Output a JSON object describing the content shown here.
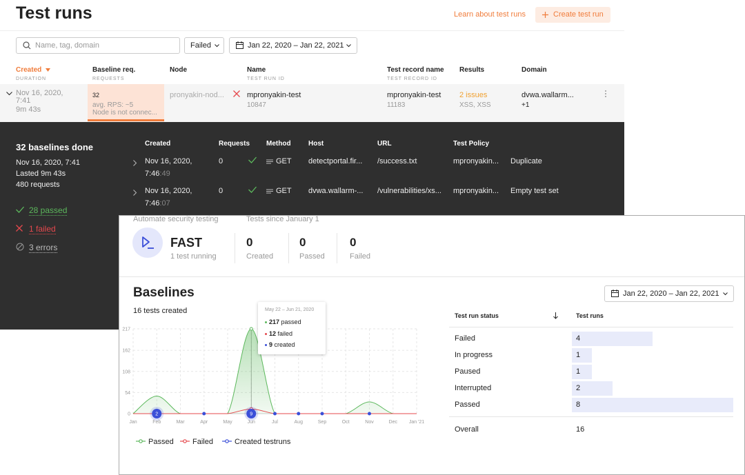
{
  "header": {
    "title": "Test runs",
    "learn_link": "Learn about test runs",
    "create_button": "Create test run"
  },
  "filters": {
    "search_placeholder": "Name, tag, domain",
    "status": "Failed",
    "date_range": "Jan 22, 2020 – Jan 22, 2021"
  },
  "runs_table": {
    "columns": [
      {
        "label": "Created",
        "sub": "DURATION"
      },
      {
        "label": "Baseline req.",
        "sub": "REQUESTS"
      },
      {
        "label": "Node"
      },
      {
        "label": "Name",
        "sub": "TEST RUN ID"
      },
      {
        "label": "Test record name",
        "sub": "TEST RECORD ID"
      },
      {
        "label": "Results"
      },
      {
        "label": "Domain"
      }
    ],
    "row": {
      "created": "Nov 16, 2020, 7:41",
      "duration": "9m 43s",
      "requests": 32,
      "rps": "avg. RPS: ~5",
      "node_status": "Node is not connec...",
      "node": "pronyakin-nod...",
      "name": "mpronyakin-test",
      "run_id": 10847,
      "record_name": "mpronyakin-test",
      "record_id": 11183,
      "results": "2 issues",
      "result_types": "XSS, XSS",
      "domain": "dvwa.wallarm...",
      "domain_more": "+1"
    }
  },
  "details": {
    "title": "32 baselines done",
    "started": "Nov 16, 2020, 7:41",
    "lasted": "Lasted 9m 43s",
    "requests": "480 requests",
    "passed": "28 passed",
    "failed": "1 failed",
    "errors": "3 errors",
    "columns": [
      "Created",
      "Requests",
      "Method",
      "Host",
      "URL",
      "Test Policy"
    ],
    "rows": [
      {
        "date": "Nov 16, 2020,",
        "time": "7:46",
        "seconds": ":49",
        "requests": 0,
        "method": "GET",
        "host": "detectportal.fir...",
        "url": "/success.txt",
        "policy": "mpronyakin...",
        "status": "Duplicate"
      },
      {
        "date": "Nov 16, 2020,",
        "time": "7:46",
        "seconds": ":07",
        "requests": 0,
        "method": "GET",
        "host": "dvwa.wallarm-...",
        "url": "/vulnerabilities/xs...",
        "policy": "mpronyakin...",
        "status": "Empty test set"
      }
    ]
  },
  "dashboard": {
    "automate_label": "Automate security testing",
    "since_label": "Tests since January 1",
    "product": "FAST",
    "product_status": "1 test running",
    "stats": [
      {
        "value": 0,
        "label": "Created"
      },
      {
        "value": 0,
        "label": "Passed"
      },
      {
        "value": 0,
        "label": "Failed"
      }
    ],
    "baselines_title": "Baselines",
    "tests_created": "16 tests created",
    "date_range": "Jan 22, 2020 – Jan 22, 2021"
  },
  "chart_data": {
    "type": "line",
    "categories": [
      "Jan",
      "Feb",
      "Mar",
      "Apr",
      "May",
      "Jun",
      "Jul",
      "Aug",
      "Sep",
      "Oct",
      "Nov",
      "Dec",
      "Jan '21"
    ],
    "series": [
      {
        "name": "Passed",
        "type": "area",
        "color": "#5cb85c",
        "values": [
          0,
          45,
          0,
          0,
          0,
          217,
          0,
          0,
          0,
          0,
          30,
          0,
          0
        ]
      },
      {
        "name": "Failed",
        "type": "line",
        "color": "#e5484d",
        "values": [
          0,
          0,
          0,
          0,
          0,
          12,
          0,
          0,
          0,
          0,
          0,
          0,
          0
        ]
      },
      {
        "name": "Created testruns",
        "type": "scatter",
        "color": "#3b4fd8",
        "values": [
          null,
          2,
          null,
          1,
          null,
          9,
          1,
          1,
          1,
          null,
          1,
          null,
          null
        ]
      }
    ],
    "ylim": [
      0,
      217
    ],
    "yticks": [
      0,
      54,
      108,
      162,
      217
    ],
    "grid": true,
    "tooltip": {
      "title": "May 22 – Jun 21, 2020",
      "lines": [
        {
          "count": 217,
          "text": "passed"
        },
        {
          "count": 12,
          "text": "failed"
        },
        {
          "count": 9,
          "text": "created"
        }
      ]
    }
  },
  "status_table": {
    "columns": [
      "Test run status",
      "Test runs"
    ],
    "rows": [
      {
        "status": "Failed",
        "count": 4
      },
      {
        "status": "In progress",
        "count": 1
      },
      {
        "status": "Paused",
        "count": 1
      },
      {
        "status": "Interrupted",
        "count": 2
      },
      {
        "status": "Passed",
        "count": 8
      }
    ],
    "overall": {
      "label": "Overall",
      "count": 16
    }
  }
}
